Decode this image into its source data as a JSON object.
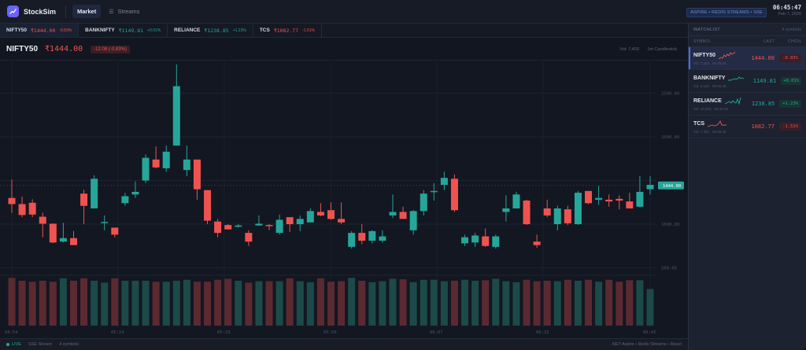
{
  "app": {
    "name": "StockSim"
  },
  "nav": {
    "tabs": [
      {
        "label": "Market",
        "active": true
      },
      {
        "label": "Streams",
        "active": false
      }
    ]
  },
  "header": {
    "stack_badge": "ASPIRE • REDIS STREAMS • SSE",
    "time": "06:45:47",
    "date": "Feb 7, 2026"
  },
  "ticker": [
    {
      "symbol": "NIFTY50",
      "price": "₹1444.00",
      "change": "-0.83%",
      "dir": "down"
    },
    {
      "symbol": "BANKNIFTY",
      "price": "₹1149.81",
      "change": "+0.01%",
      "dir": "up"
    },
    {
      "symbol": "RELIANCE",
      "price": "₹1238.85",
      "change": "+1.23%",
      "dir": "up"
    },
    {
      "symbol": "TCS",
      "price": "₹1082.77",
      "change": "-1.51%",
      "dir": "down"
    }
  ],
  "chart_header": {
    "symbol": "NIFTY50",
    "price": "₹1444.00",
    "change": "-12.08 (-0.83%)",
    "volume": "Vol: 7,403",
    "interval": "1m Candlestick"
  },
  "chart_data": {
    "type": "candlestick",
    "title": "NIFTY50",
    "interval": "1m",
    "y_ticks": [
      500,
      1000,
      1500,
      2000,
      2500
    ],
    "y_tick_labels": [
      "500.00",
      "1000.00",
      "1500.00",
      "2000.00",
      "2500.00"
    ],
    "x_tick_labels": [
      "04:54",
      "05:14",
      "05:29",
      "05:50",
      "06:07",
      "06:32",
      "06:45"
    ],
    "last_price": 1444.0,
    "last_price_label": "1444.00",
    "colors": {
      "up": "#26a69a",
      "down": "#ef5350",
      "up_volume": "#1c4a48",
      "down_volume": "#5a2a30"
    },
    "candles": [
      [
        1300,
        1230,
        1130,
        1510,
        0.98
      ],
      [
        1230,
        1105,
        1080,
        1315,
        0.92
      ],
      [
        1245,
        1110,
        1080,
        1285,
        0.9
      ],
      [
        1085,
        1005,
        850,
        1130,
        0.92
      ],
      [
        1005,
        790,
        780,
        1010,
        0.9
      ],
      [
        800,
        840,
        790,
        1015,
        0.97
      ],
      [
        840,
        760,
        760,
        920,
        0.92
      ],
      [
        1350,
        1210,
        1000,
        1395,
        0.97
      ],
      [
        1180,
        1520,
        1180,
        1560,
        0.92
      ],
      [
        1020,
        1025,
        930,
        1100,
        0.88
      ],
      [
        960,
        880,
        850,
        960,
        0.97
      ],
      [
        1240,
        1320,
        1210,
        1360,
        0.92
      ],
      [
        1340,
        1370,
        1300,
        1490,
        0.92
      ],
      [
        1500,
        1760,
        1470,
        1800,
        0.92
      ],
      [
        1740,
        1650,
        1640,
        1890,
        0.9
      ],
      [
        1640,
        1830,
        1600,
        1900,
        0.9
      ],
      [
        1900,
        2580,
        1900,
        2830,
        0.92
      ],
      [
        1620,
        1740,
        1550,
        1900,
        0.94
      ],
      [
        1740,
        1400,
        1280,
        1740,
        0.9
      ],
      [
        1390,
        1040,
        1000,
        1390,
        0.9
      ],
      [
        1030,
        900,
        850,
        1060,
        0.94
      ],
      [
        990,
        940,
        940,
        1000,
        0.96
      ],
      [
        970,
        985,
        960,
        1000,
        0.92
      ],
      [
        900,
        800,
        750,
        930,
        0.88
      ],
      [
        985,
        1005,
        980,
        1100,
        0.91
      ],
      [
        990,
        980,
        930,
        1000,
        0.91
      ],
      [
        900,
        1050,
        880,
        1110,
        0.91
      ],
      [
        1080,
        1000,
        910,
        1080,
        0.97
      ],
      [
        1000,
        1060,
        920,
        1100,
        0.91
      ],
      [
        1020,
        1150,
        1020,
        1180,
        0.89
      ],
      [
        1140,
        1100,
        1090,
        1240,
        0.97
      ],
      [
        1160,
        1060,
        1050,
        1250,
        0.9
      ],
      [
        1060,
        1020,
        1000,
        1250,
        0.91
      ],
      [
        740,
        900,
        720,
        920,
        0.98
      ],
      [
        900,
        810,
        770,
        1000,
        0.92
      ],
      [
        810,
        920,
        780,
        930,
        0.89
      ],
      [
        810,
        860,
        790,
        930,
        0.91
      ],
      [
        1100,
        1140,
        1070,
        1340,
        0.96
      ],
      [
        1140,
        1060,
        1060,
        1200,
        0.95
      ],
      [
        930,
        1150,
        880,
        1160,
        0.89
      ],
      [
        1150,
        1350,
        1100,
        1390,
        0.94
      ],
      [
        1370,
        1380,
        1270,
        1470,
        0.94
      ],
      [
        1450,
        1530,
        1390,
        1600,
        0.91
      ],
      [
        1520,
        1160,
        1140,
        1570,
        0.92
      ],
      [
        780,
        850,
        750,
        880,
        0.94
      ],
      [
        790,
        870,
        740,
        900,
        0.92
      ],
      [
        860,
        750,
        740,
        950,
        0.93
      ],
      [
        740,
        860,
        720,
        880,
        0.96
      ],
      [
        1140,
        1180,
        1030,
        1330,
        0.91
      ],
      [
        1180,
        1340,
        1180,
        1370,
        0.89
      ],
      [
        1270,
        1000,
        990,
        1280,
        0.94
      ],
      [
        800,
        760,
        730,
        880,
        0.91
      ],
      [
        1180,
        1100,
        1080,
        1280,
        0.92
      ],
      [
        1000,
        1180,
        930,
        1210,
        0.91
      ],
      [
        1170,
        1010,
        990,
        1210,
        0.94
      ],
      [
        1000,
        1360,
        990,
        1380,
        0.92
      ],
      [
        1380,
        1240,
        1230,
        1380,
        0.94
      ],
      [
        1280,
        1300,
        1220,
        1440,
        0.9
      ],
      [
        1280,
        1260,
        1200,
        1340,
        0.94
      ],
      [
        1290,
        1270,
        1170,
        1330,
        0.9
      ],
      [
        1260,
        1180,
        1180,
        1360,
        0.93
      ],
      [
        1200,
        1370,
        1190,
        1550,
        0.93
      ],
      [
        1400,
        1450,
        1340,
        1550,
        0.75
      ]
    ]
  },
  "watchlist": {
    "title": "WATCHLIST",
    "count": "4 symbols",
    "columns": {
      "symbol": "SYMBOL",
      "last": "LAST",
      "change": "CHG%"
    },
    "rows": [
      {
        "symbol": "NIFTY50",
        "vol": "Vol: 7,403",
        "time": "06:45:44",
        "last": "1444.00",
        "change": "-0.83%",
        "dir": "down",
        "active": true,
        "spark": "0,9 3,7 5,8 7,4 9,6 11,3 13,5 15,1 17,3 19,2 21,0"
      },
      {
        "symbol": "BANKNIFTY",
        "vol": "Vol: 6,140",
        "time": "06:45:48",
        "last": "1149.81",
        "change": "+0.01%",
        "dir": "up",
        "active": false,
        "spark": "0,7 3,7 6,6 8,5 10,6 12,5 14,3 16,5 18,4 20,5"
      },
      {
        "symbol": "RELIANCE",
        "vol": "Vol: 16,203",
        "time": "06:45:48",
        "last": "1238.85",
        "change": "+1.23%",
        "dir": "up",
        "active": false,
        "spark": "0,8 2,7 4,6 6,5 8,7 10,4 12,6 14,7 16,2 18,8 20,0"
      },
      {
        "symbol": "TCS",
        "vol": "Vol: 7,452",
        "time": "06:45:48",
        "last": "1082.77",
        "change": "-1.51%",
        "dir": "down",
        "active": false,
        "spark": "0,8 3,7 6,6 9,7 12,6 14,4 16,1 18,6 20,6 24,6"
      }
    ]
  },
  "footer": {
    "live": "LIVE",
    "stream": "SSE Stream",
    "symbols": "4 symbols",
    "tech": ".NET Aspire • Redis Streams • React"
  }
}
